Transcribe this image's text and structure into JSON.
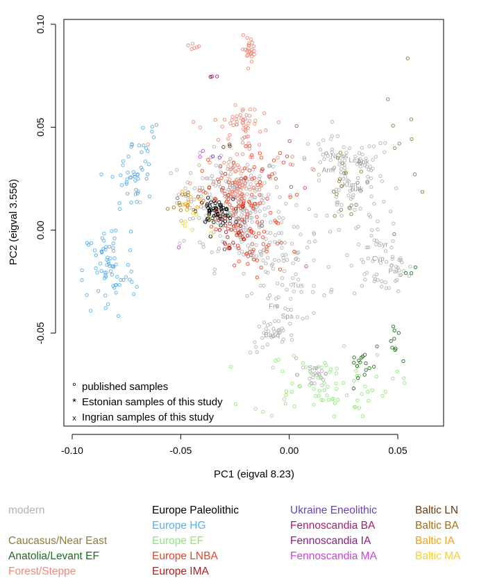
{
  "chart_data": {
    "type": "scatter",
    "xlabel": "PC1 (eigval 8.23)",
    "ylabel": "PC2 (eigval 3.556)",
    "xlim": [
      -0.1,
      0.065
    ],
    "ylim": [
      -0.095,
      0.1
    ],
    "x_ticks": [
      "-0.10",
      "-0.05",
      "0.00",
      "0.05"
    ],
    "x_tick_values": [
      -0.1,
      -0.05,
      0.0,
      0.05
    ],
    "y_ticks": [
      "-0.05",
      "0.00",
      "0.05",
      "0.10"
    ],
    "y_tick_values": [
      -0.05,
      0.0,
      0.05,
      0.1
    ],
    "grid": false,
    "marker_key": [
      {
        "marker": "°",
        "text": "published samples"
      },
      {
        "marker": "*",
        "text": "Estonian samples of this study"
      },
      {
        "marker": "x",
        "text": "Ingrian samples of this study"
      }
    ],
    "population_labels": [
      "Lez",
      "NOss",
      "Abk",
      "Arm",
      "Kum",
      "Bal",
      "Min",
      "Rom",
      "Turk",
      "Syr",
      "Cyp",
      "Pal",
      "Tus",
      "Fre",
      "Spa",
      "Sar",
      "Basq",
      "Est"
    ],
    "groups": [
      {
        "name": "modern",
        "color": "#b3b3b3",
        "clusters": [
          [
            -0.027,
            0.018,
            0.012,
            0.009,
            140
          ],
          [
            -0.02,
            0.002,
            0.014,
            0.01,
            90
          ],
          [
            -0.005,
            -0.01,
            0.008,
            0.005,
            40
          ],
          [
            0.0,
            -0.03,
            0.012,
            0.007,
            40
          ],
          [
            -0.008,
            -0.052,
            0.005,
            0.004,
            30
          ],
          [
            0.012,
            -0.07,
            0.004,
            0.004,
            20
          ],
          [
            0.025,
            0.033,
            0.012,
            0.006,
            60
          ],
          [
            0.03,
            0.015,
            0.008,
            0.008,
            40
          ],
          [
            0.04,
            -0.01,
            0.006,
            0.01,
            40
          ],
          [
            0.05,
            -0.02,
            0.004,
            0.004,
            20
          ]
        ]
      },
      {
        "name": "Europe Paleolithic",
        "color": "#000000",
        "clusters": [
          [
            -0.034,
            0.009,
            0.004,
            0.003,
            60
          ]
        ]
      },
      {
        "name": "Europe HG",
        "color": "#5aaee8",
        "clusters": [
          [
            -0.083,
            -0.02,
            0.006,
            0.012,
            70
          ],
          [
            -0.072,
            0.025,
            0.005,
            0.009,
            40
          ],
          [
            -0.066,
            0.045,
            0.003,
            0.006,
            10
          ]
        ]
      },
      {
        "name": "Europe EF",
        "color": "#90e67a",
        "clusters": [
          [
            0.015,
            -0.075,
            0.016,
            0.008,
            80
          ]
        ]
      },
      {
        "name": "Europe LNBA",
        "color": "#e8432a",
        "clusters": [
          [
            -0.024,
            0.015,
            0.008,
            0.01,
            90
          ],
          [
            -0.015,
            -0.01,
            0.01,
            0.008,
            40
          ],
          [
            -0.01,
            0.03,
            0.008,
            0.01,
            20
          ]
        ]
      },
      {
        "name": "Europe IMA",
        "color": "#b81c1c",
        "clusters": [
          [
            -0.025,
            0.0,
            0.004,
            0.004,
            20
          ]
        ]
      },
      {
        "name": "Forest/Steppe",
        "color": "#f08878",
        "clusters": [
          [
            -0.022,
            0.052,
            0.004,
            0.004,
            40
          ],
          [
            -0.018,
            0.088,
            0.002,
            0.003,
            25
          ],
          [
            -0.045,
            0.089,
            0.002,
            0.001,
            6
          ],
          [
            -0.023,
            0.02,
            0.003,
            0.007,
            50
          ],
          [
            -0.02,
            0.04,
            0.012,
            0.01,
            30
          ]
        ]
      },
      {
        "name": "Caucasus/Near East",
        "color": "#8c7c3c",
        "clusters": [
          [
            0.026,
            0.02,
            0.006,
            0.008,
            20
          ],
          [
            0.056,
            0.045,
            0.006,
            0.016,
            10
          ]
        ]
      },
      {
        "name": "Anatolia/Levant EF",
        "color": "#1e6b1e",
        "clusters": [
          [
            0.033,
            -0.066,
            0.003,
            0.005,
            15
          ],
          [
            0.05,
            -0.055,
            0.004,
            0.006,
            10
          ],
          [
            0.055,
            -0.022,
            0.002,
            0.003,
            3
          ]
        ]
      },
      {
        "name": "Ukraine Eneolithic",
        "color": "#6a3fbf",
        "clusters": [
          [
            -0.034,
            0.035,
            0.001,
            0.001,
            2
          ]
        ]
      },
      {
        "name": "Fennoscandia BA",
        "color": "#a02070",
        "clusters": [
          [
            -0.036,
            0.075,
            0.001,
            0.001,
            4
          ]
        ]
      },
      {
        "name": "Fennoscandia IA",
        "color": "#8a1e8a",
        "clusters": [
          [
            -0.03,
            -0.007,
            0.001,
            0.001,
            2
          ]
        ]
      },
      {
        "name": "Fennoscandia MA",
        "color": "#d040e0",
        "clusters": [
          [
            -0.041,
            0.038,
            0.001,
            0.001,
            2
          ],
          [
            -0.05,
            -0.008,
            0.001,
            0.001,
            1
          ]
        ]
      },
      {
        "name": "Baltic LN",
        "color": "#6b3b12",
        "clusters": [
          [
            -0.029,
            0.041,
            0.001,
            0.001,
            3
          ]
        ]
      },
      {
        "name": "Baltic BA",
        "color": "#a0701a",
        "clusters": [
          [
            -0.05,
            0.014,
            0.003,
            0.003,
            12
          ]
        ]
      },
      {
        "name": "Baltic IA",
        "color": "#f0a21e",
        "clusters": [
          [
            -0.046,
            0.012,
            0.003,
            0.003,
            12
          ]
        ]
      },
      {
        "name": "Baltic MA",
        "color": "#f5d22a",
        "clusters": [
          [
            -0.042,
            0.005,
            0.004,
            0.004,
            10
          ]
        ]
      }
    ]
  },
  "legend": {
    "modern": "modern",
    "europe_paleolithic": "Europe Paleolithic",
    "ukraine_eneolithic": "Ukraine Eneolithic",
    "baltic_ln": "Baltic LN",
    "europe_hg": "Europe HG",
    "fennoscandia_ba": "Fennoscandia BA",
    "baltic_ba": "Baltic BA",
    "caucasus": "Caucasus/Near East",
    "europe_ef": "Europe EF",
    "fennoscandia_ia": "Fennoscandia IA",
    "baltic_ia": "Baltic IA",
    "anatolia": "Anatolia/Levant EF",
    "europe_lnba": "Europe LNBA",
    "fennoscandia_ma": "Fennoscandia MA",
    "baltic_ma": "Baltic MA",
    "forest_steppe": "Forest/Steppe",
    "europe_ima": "Europe IMA"
  },
  "colors": {
    "modern": "#b3b3b3",
    "europe_paleolithic": "#000000",
    "ukraine_eneolithic": "#6a3fbf",
    "baltic_ln": "#6b3b12",
    "europe_hg": "#5aaee8",
    "fennoscandia_ba": "#a02070",
    "baltic_ba": "#a0701a",
    "caucasus": "#8c7c3c",
    "europe_ef": "#90e67a",
    "fennoscandia_ia": "#8a1e8a",
    "baltic_ia": "#f0a21e",
    "anatolia": "#1e6b1e",
    "europe_lnba": "#e8432a",
    "fennoscandia_ma": "#d040e0",
    "baltic_ma": "#f5d22a",
    "forest_steppe": "#f08878",
    "europe_ima": "#b81c1c"
  }
}
